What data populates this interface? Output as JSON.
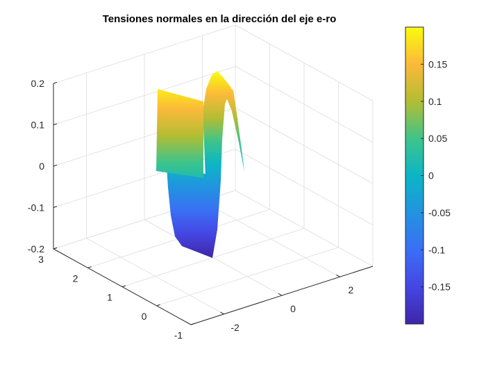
{
  "chart_data": {
    "type": "surface",
    "title": "Tensiones normales en la dirección del eje e-ro",
    "xlabel": "",
    "ylabel": "",
    "zlabel": "",
    "xlim": [
      -3.14,
      3.14
    ],
    "ylim": [
      -1,
      3
    ],
    "zlim": [
      -0.2,
      0.2
    ],
    "xticks": [
      -2,
      0,
      2
    ],
    "xtick_labels": [
      "-2",
      "0",
      "2"
    ],
    "yticks": [
      -1,
      0,
      1,
      2,
      3
    ],
    "ytick_labels": [
      "-1",
      "0",
      "1",
      "2",
      "3"
    ],
    "zticks": [
      -0.2,
      -0.1,
      0,
      0.1,
      0.2
    ],
    "ztick_labels": [
      "-0.2",
      "-0.1",
      "0",
      "0.1",
      "0.2"
    ],
    "grid": true,
    "view": "3d-default",
    "colormap": "parula",
    "colormap_colors": [
      "#3e26a8",
      "#4546e3",
      "#3a6ff5",
      "#2293e0",
      "#0cb5c5",
      "#3ec48a",
      "#b3bd33",
      "#fbb93a",
      "#f9fb0e"
    ],
    "colorbar": {
      "location": "right",
      "clim": [
        -0.2,
        0.2
      ],
      "ticks": [
        -0.15,
        -0.1,
        -0.05,
        0,
        0.05,
        0.1,
        0.15
      ],
      "tick_labels": [
        "-0.15",
        "-0.1",
        "-0.05",
        "0",
        "0.05",
        "0.1",
        "0.15"
      ]
    }
  }
}
